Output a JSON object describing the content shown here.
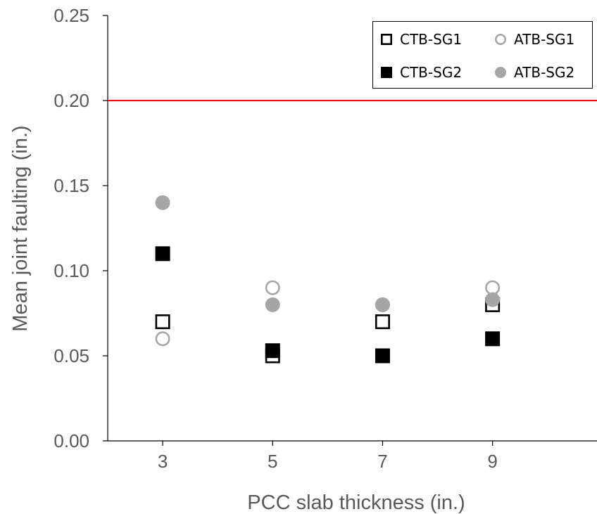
{
  "chart_data": {
    "type": "scatter",
    "xlabel": "PCC slab thickness (in.)",
    "ylabel": "Mean joint faulting (in.)",
    "xlim": [
      2,
      10.9
    ],
    "ylim": [
      0,
      0.25
    ],
    "x_ticks": [
      3,
      5,
      7,
      9
    ],
    "y_ticks": [
      0.0,
      0.05,
      0.1,
      0.15,
      0.2,
      0.25
    ],
    "y_tick_labels": [
      "0.00",
      "0.05",
      "0.10",
      "0.15",
      "0.20",
      "0.25"
    ],
    "grid": false,
    "legend_position": "top-right",
    "threshold": {
      "y": 0.2,
      "color": "#e8141c"
    },
    "series": [
      {
        "name": "CTB-SG1",
        "marker": "square",
        "filled": false,
        "color": "#000000",
        "x": [
          3,
          5,
          7,
          9
        ],
        "y": [
          0.07,
          0.05,
          0.07,
          0.08
        ]
      },
      {
        "name": "CTB-SG2",
        "marker": "square",
        "filled": true,
        "color": "#000000",
        "x": [
          3,
          5,
          7,
          9
        ],
        "y": [
          0.11,
          0.053,
          0.05,
          0.06
        ]
      },
      {
        "name": "ATB-SG1",
        "marker": "circle",
        "filled": false,
        "color": "#a6a6a6",
        "x": [
          3,
          5,
          7,
          9
        ],
        "y": [
          0.06,
          0.09,
          0.08,
          0.09
        ]
      },
      {
        "name": "ATB-SG2",
        "marker": "circle",
        "filled": true,
        "color": "#a6a6a6",
        "x": [
          3,
          5,
          7,
          9
        ],
        "y": [
          0.14,
          0.08,
          0.08,
          0.083
        ]
      }
    ],
    "draw_order": [
      "CTB-SG1",
      "ATB-SG1",
      "ATB-SG2",
      "CTB-SG2"
    ],
    "legend_order": [
      "CTB-SG1",
      "ATB-SG1",
      "CTB-SG2",
      "ATB-SG2"
    ]
  }
}
